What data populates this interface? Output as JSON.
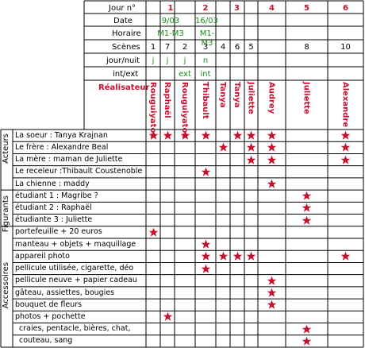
{
  "header": {
    "jour_label": "Jour n°",
    "date_label": "Date",
    "horaire_label": "Horaire",
    "scenes_label": "Scènes",
    "jour_nuit_label": "jour/nuit",
    "int_ext_label": "int/ext",
    "realisateur_label": "Réalisateur"
  },
  "days": [
    "1",
    "2",
    "3",
    "4",
    "5",
    "6"
  ],
  "dates": [
    "9/03",
    "16/03"
  ],
  "horaires": [
    "M1-M3",
    "M1-M3"
  ],
  "scenes": [
    "1",
    "7",
    "2",
    "3",
    "4",
    "6",
    "5",
    "8",
    "10"
  ],
  "jour_nuit": [
    "j",
    "j",
    "j",
    "n"
  ],
  "int_ext": [
    "ext",
    "int"
  ],
  "directors": [
    "Rouguiyatou",
    "Raphaël",
    "Rouguiyatou",
    "Thibault",
    "Tanya",
    "Tanya",
    "Juliette",
    "Audrey",
    "Juliette",
    "Alexandre"
  ],
  "groups": {
    "acteurs": "Acteurs",
    "figurants": "Figurants",
    "accessoires": "Accessoires"
  },
  "rows": [
    {
      "label": "La soeur : Tanya Krajnan",
      "stars": [
        0,
        1,
        2,
        3,
        5,
        6,
        7,
        9
      ]
    },
    {
      "label": "Le frère : Alexandre Beal",
      "stars": [
        4,
        6,
        7,
        9
      ]
    },
    {
      "label": "La mère : maman de Juliette",
      "stars": [
        6,
        7,
        9
      ]
    },
    {
      "label": "Le receleur :Thibault Coustenoble",
      "stars": [
        3
      ]
    },
    {
      "label": "La chienne : maddy",
      "stars": [
        7
      ]
    },
    {
      "label": "étudiant 1 : Magribe ?",
      "stars": [
        8
      ]
    },
    {
      "label": "étudiant 2 : Raphaël",
      "stars": [
        8
      ]
    },
    {
      "label": "étudiante 3 : Juliette",
      "stars": [
        8
      ]
    },
    {
      "label": "portefeuille + 20 euros",
      "stars": [
        0
      ]
    },
    {
      "label": "manteau + objets + maquillage",
      "stars": [
        3
      ]
    },
    {
      "label": "appareil photo",
      "stars": [
        3,
        4,
        5,
        6,
        9
      ]
    },
    {
      "label": "pellicule utilisée, cigarette, déo",
      "stars": [
        3
      ]
    },
    {
      "label": "pellicule neuve + papier cadeau",
      "stars": [
        7
      ]
    },
    {
      "label": "gâteau, assiettes, bougies",
      "stars": [
        7
      ]
    },
    {
      "label": "bouquet de fleurs",
      "stars": [
        7
      ]
    },
    {
      "label": "photos + pochette",
      "stars": [
        1
      ]
    },
    {
      "label": "craies, pentacle, bières, chat,",
      "stars": [
        8
      ]
    },
    {
      "label": "couteau, sang",
      "stars": [
        8
      ]
    }
  ],
  "colors": {
    "red": "#c8102e",
    "green": "#1a8a1a",
    "line": "#000000"
  }
}
